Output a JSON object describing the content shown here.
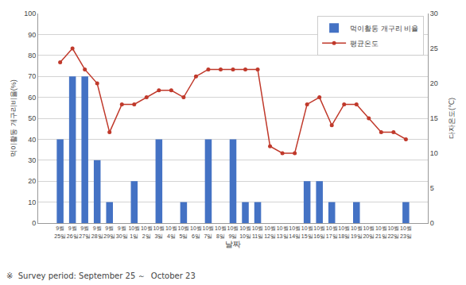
{
  "chart_data": {
    "type": "bar",
    "xlabel": "날짜",
    "ylabel": "먹이활동 개구리비율(%)",
    "y2label": "다자온도(℃)",
    "annotations": [
      "※  Survey period: September 25 ～  October 23"
    ],
    "categories": [
      "9월\n25일",
      "9월\n26일",
      "9월\n27일",
      "9월\n28일",
      "9월\n29일",
      "9월\n30일",
      "10월\n1일",
      "10월\n2일",
      "10월\n3일",
      "10월\n4일",
      "10월\n5일",
      "10월\n6일",
      "10월\n7일",
      "10월\n8일",
      "10월\n9일",
      "10월\n10일",
      "10월\n11일",
      "10월\n12일",
      "10월\n13일",
      "10월\n14일",
      "10월\n15일",
      "10월\n16일",
      "10월\n17일",
      "10월\n18일",
      "10월\n19일",
      "10월\n20일",
      "10월\n21일",
      "10월\n22일",
      "10월\n23일"
    ],
    "series": [
      {
        "name": "먹이활동 개구리 비율",
        "type": "bar",
        "color": "#4472C4",
        "values": [
          40,
          70,
          70,
          30,
          10,
          0,
          20,
          0,
          40,
          0,
          10,
          0,
          40,
          0,
          40,
          10,
          10,
          0,
          0,
          0,
          20,
          20,
          10,
          0,
          10,
          0,
          0,
          0,
          10
        ]
      },
      {
        "name": "평균온도",
        "type": "line",
        "color": "#C0392B",
        "marker": "circle",
        "line_style": "solid",
        "axis": "y2",
        "values": [
          23,
          25,
          22,
          20,
          13,
          17,
          17,
          18,
          19,
          19,
          18,
          21,
          22,
          22,
          22,
          22,
          22,
          11,
          10,
          10,
          17,
          18,
          14,
          17,
          17,
          15,
          13,
          13,
          12
        ]
      }
    ],
    "ylim": [
      0,
      100
    ],
    "yticks": [
      0,
      10,
      20,
      30,
      40,
      50,
      60,
      70,
      80,
      90,
      100
    ],
    "y2lim": [
      0,
      30
    ],
    "y2ticks": [
      0,
      5,
      10,
      15,
      20,
      25,
      30
    ],
    "grid": true,
    "legend": "upper right"
  }
}
